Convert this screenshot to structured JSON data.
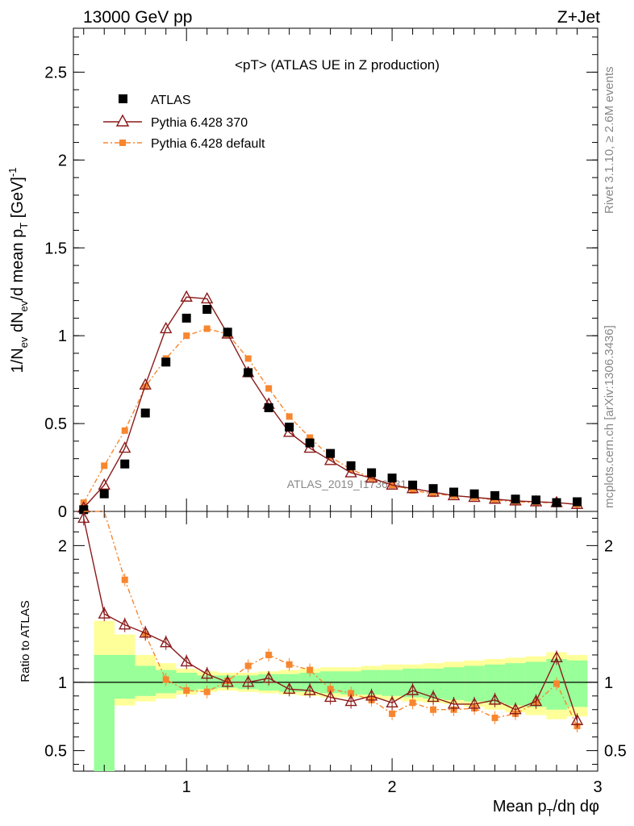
{
  "header": {
    "left": "13000 GeV pp",
    "right": "Z+Jet"
  },
  "plot_title": "<pT> (ATLAS UE in Z production)",
  "side_texts": {
    "rivet": "Rivet 3.1.10, ≥ 2.6M events",
    "mcplots": "mcplots.cern.ch [arXiv:1306.3436]"
  },
  "watermark": "ATLAS_2019_I1736531",
  "colors": {
    "atlas": "#000000",
    "pythia370": "#8b1a1a",
    "pythia_default": "#f7862f",
    "band_yellow": "#ffff99",
    "band_green": "#99ff99"
  },
  "chart_data": {
    "type": "line",
    "xlabel": "Mean p_T/dη dφ",
    "ylabel": "1/N_ev dN_ev/d mean p_T [GeV]^-1",
    "ratio_ylabel": "Ratio to ATLAS",
    "xlim": [
      0.45,
      3.0
    ],
    "ylim": [
      0,
      2.75
    ],
    "ratio_ylim": [
      0.35,
      2.25
    ],
    "log_x": false,
    "x_ticks": [
      "1",
      "2",
      "3"
    ],
    "y_ticks": [
      "0",
      "0.5",
      "1",
      "1.5",
      "2",
      "2.5"
    ],
    "ratio_y_ticks": [
      "0.5",
      "1",
      "2"
    ],
    "legend_position": "top-left",
    "x": [
      0.5,
      0.6,
      0.7,
      0.8,
      0.9,
      1.0,
      1.1,
      1.2,
      1.3,
      1.4,
      1.5,
      1.6,
      1.7,
      1.8,
      1.9,
      2.0,
      2.1,
      2.2,
      2.3,
      2.4,
      2.5,
      2.6,
      2.7,
      2.8,
      2.9
    ],
    "x_edges": [
      0.4,
      0.55,
      0.65,
      0.75,
      0.85,
      0.95,
      1.05,
      1.15,
      1.25,
      1.35,
      1.45,
      1.55,
      1.65,
      1.75,
      1.85,
      1.95,
      2.05,
      2.15,
      2.25,
      2.35,
      2.45,
      2.55,
      2.65,
      2.75,
      2.85,
      2.95
    ],
    "series": [
      {
        "name": "ATLAS",
        "style": "square",
        "values": [
          0.01,
          0.1,
          0.27,
          0.56,
          0.85,
          1.1,
          1.15,
          1.02,
          0.79,
          0.59,
          0.48,
          0.39,
          0.33,
          0.26,
          0.22,
          0.19,
          0.15,
          0.13,
          0.11,
          0.1,
          0.09,
          0.07,
          0.065,
          0.05,
          0.055
        ]
      },
      {
        "name": "Pythia 6.428 370",
        "style": "triangle-line",
        "values": [
          0.02,
          0.15,
          0.36,
          0.72,
          1.04,
          1.22,
          1.21,
          1.01,
          0.79,
          0.61,
          0.45,
          0.36,
          0.29,
          0.22,
          0.19,
          0.15,
          0.13,
          0.11,
          0.09,
          0.08,
          0.07,
          0.06,
          0.055,
          0.05,
          0.04
        ],
        "ratio": [
          2.2,
          1.5,
          1.42,
          1.36,
          1.29,
          1.15,
          1.06,
          1.0,
          1.0,
          1.03,
          0.95,
          0.94,
          0.89,
          0.86,
          0.9,
          0.85,
          0.94,
          0.89,
          0.84,
          0.84,
          0.87,
          0.8,
          0.86,
          1.18,
          0.72
        ]
      },
      {
        "name": "Pythia 6.428 default",
        "style": "dashdot-square",
        "values": [
          0.05,
          0.26,
          0.46,
          0.71,
          0.87,
          1.0,
          1.04,
          1.01,
          0.87,
          0.7,
          0.54,
          0.42,
          0.31,
          0.24,
          0.19,
          0.15,
          0.12,
          0.1,
          0.09,
          0.08,
          0.065,
          0.055,
          0.05,
          0.05,
          0.04
        ],
        "ratio": [
          2.3,
          2.3,
          1.75,
          1.35,
          1.02,
          0.94,
          0.93,
          1.01,
          1.12,
          1.2,
          1.13,
          1.09,
          0.95,
          0.92,
          0.87,
          0.77,
          0.85,
          0.8,
          0.8,
          0.81,
          0.74,
          0.77,
          0.85,
          0.99,
          0.68
        ]
      }
    ],
    "band_yellow": [
      [
        0.4,
        2.25
      ],
      [
        1.45,
        0.7
      ],
      [
        1.35,
        0.83
      ],
      [
        1.2,
        0.86
      ],
      [
        1.14,
        0.88
      ],
      [
        1.1,
        0.91
      ],
      [
        1.08,
        0.93
      ],
      [
        1.07,
        0.94
      ],
      [
        1.07,
        0.93
      ],
      [
        1.08,
        0.92
      ],
      [
        1.09,
        0.91
      ],
      [
        1.1,
        0.9
      ],
      [
        1.11,
        0.89
      ],
      [
        1.11,
        0.89
      ],
      [
        1.12,
        0.88
      ],
      [
        1.13,
        0.87
      ],
      [
        1.13,
        0.86
      ],
      [
        1.14,
        0.85
      ],
      [
        1.15,
        0.84
      ],
      [
        1.16,
        0.82
      ],
      [
        1.17,
        0.8
      ],
      [
        1.18,
        0.78
      ],
      [
        1.19,
        0.76
      ],
      [
        1.22,
        0.73
      ],
      [
        1.2,
        0.75
      ]
    ],
    "band_green": [
      [
        0.35,
        1.9
      ],
      [
        1.2,
        0.35
      ],
      [
        1.2,
        0.88
      ],
      [
        1.12,
        0.9
      ],
      [
        1.09,
        0.92
      ],
      [
        1.07,
        0.94
      ],
      [
        1.05,
        0.95
      ],
      [
        1.05,
        0.96
      ],
      [
        1.05,
        0.95
      ],
      [
        1.06,
        0.94
      ],
      [
        1.06,
        0.93
      ],
      [
        1.07,
        0.93
      ],
      [
        1.08,
        0.92
      ],
      [
        1.08,
        0.91
      ],
      [
        1.09,
        0.91
      ],
      [
        1.09,
        0.9
      ],
      [
        1.1,
        0.89
      ],
      [
        1.1,
        0.88
      ],
      [
        1.11,
        0.87
      ],
      [
        1.12,
        0.86
      ],
      [
        1.13,
        0.85
      ],
      [
        1.14,
        0.83
      ],
      [
        1.15,
        0.82
      ],
      [
        1.17,
        0.8
      ],
      [
        1.16,
        0.82
      ]
    ]
  }
}
